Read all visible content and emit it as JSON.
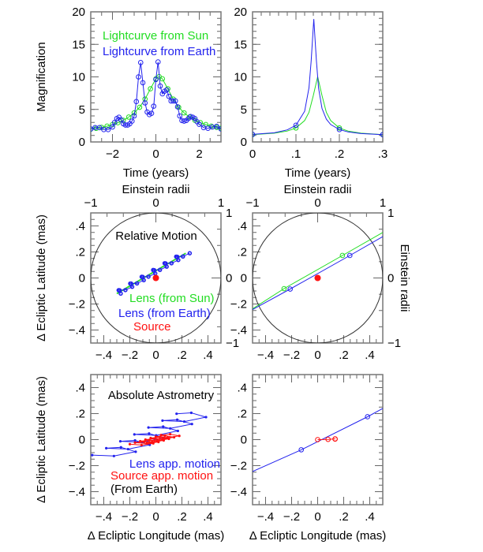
{
  "colors": {
    "sun": "#22dd22",
    "earth": "#2222ee",
    "source": "#ff1111",
    "circle": "#333333"
  },
  "chart_data": [
    {
      "type": "line",
      "xlim": [
        -3,
        3
      ],
      "ylim": [
        0,
        20
      ],
      "xticks": {
        "values": [
          -2,
          0,
          2
        ],
        "labels": [
          "−2",
          "0",
          "2"
        ],
        "minor_step": 0.5
      },
      "yticks": {
        "values": [
          0,
          5,
          10,
          15,
          20
        ],
        "labels": [
          "0",
          "5",
          "10",
          "15",
          "20"
        ],
        "minor_step": 1
      },
      "xlabel": "Time (years)",
      "ylabel": "Magnification",
      "series": [
        {
          "name": "Lightcurve from Sun",
          "color": "#22dd22",
          "marker": "open-circle",
          "x": [
            -3,
            -2.75,
            -2.5,
            -2.25,
            -2,
            -1.75,
            -1.5,
            -1.25,
            -1,
            -0.75,
            -0.5,
            -0.25,
            0,
            0.15,
            0.3,
            0.55,
            0.8,
            1.05,
            1.3,
            1.55,
            1.8,
            2.05,
            2.3,
            2.55,
            2.8,
            3
          ],
          "y": [
            1.96,
            2.09,
            2.24,
            2.43,
            2.67,
            2.96,
            3.33,
            3.82,
            4.47,
            5.33,
            6.59,
            8.17,
            9.7,
            10.04,
            9.7,
            8.17,
            6.59,
            5.33,
            4.47,
            3.82,
            3.33,
            2.96,
            2.67,
            2.43,
            2.24,
            2.12
          ]
        },
        {
          "name": "Lightcurve from Earth",
          "color": "#2222ee",
          "marker": "open-circle",
          "x": [
            -3,
            -2.8,
            -2.6,
            -2.4,
            -2.2,
            -2.0,
            -1.9,
            -1.8,
            -1.7,
            -1.6,
            -1.5,
            -1.4,
            -1.3,
            -1.2,
            -1.1,
            -1.0,
            -0.9,
            -0.8,
            -0.7,
            -0.6,
            -0.5,
            -0.4,
            -0.3,
            -0.2,
            -0.1,
            0.0,
            0.1,
            0.2,
            0.3,
            0.4,
            0.5,
            0.6,
            0.7,
            0.8,
            0.9,
            1.0,
            1.1,
            1.2,
            1.3,
            1.4,
            1.5,
            1.6,
            1.7,
            1.8,
            1.9,
            2.0,
            2.2,
            2.4,
            2.6,
            2.8,
            3.0
          ],
          "y": [
            2.0,
            2.2,
            2.2,
            1.9,
            1.9,
            2.3,
            3.0,
            3.6,
            3.8,
            3.4,
            2.8,
            2.6,
            2.6,
            2.8,
            3.2,
            4.0,
            6.2,
            10.0,
            12.2,
            9.1,
            6.0,
            4.6,
            4.2,
            4.4,
            5.5,
            9.6,
            12.3,
            8.6,
            7.4,
            7.8,
            8.0,
            7.0,
            6.3,
            6.3,
            6.3,
            5.4,
            4.0,
            3.3,
            3.2,
            3.3,
            3.6,
            3.9,
            3.8,
            3.6,
            3.1,
            2.7,
            2.2,
            2.1,
            2.3,
            2.4,
            2.0
          ]
        }
      ],
      "annotations": [
        {
          "text": "Lightcurve from Sun",
          "color": "#22dd22"
        },
        {
          "text": "Lightcurve from Earth",
          "color": "#2222ee"
        }
      ]
    },
    {
      "type": "line",
      "xlim": [
        0,
        0.3
      ],
      "ylim": [
        0,
        20
      ],
      "xticks": {
        "values": [
          0,
          0.1,
          0.2,
          0.3
        ],
        "labels": [
          "0",
          ".1",
          ".2",
          ".3"
        ],
        "minor_step": 0.02
      },
      "yticks": {
        "values": [
          0,
          5,
          10,
          15,
          20
        ],
        "labels": [
          "0",
          "5",
          "10",
          "15",
          "20"
        ],
        "minor_step": 1
      },
      "xlabel": "Time (years)",
      "series": [
        {
          "color": "#22dd22",
          "marker": "open-circle",
          "marker_indices": [
            0,
            3,
            11,
            14
          ],
          "x": [
            0,
            0.05,
            0.08,
            0.1,
            0.12,
            0.13,
            0.14,
            0.15,
            0.16,
            0.17,
            0.18,
            0.2,
            0.22,
            0.25,
            0.3
          ],
          "y": [
            1.13,
            1.34,
            1.67,
            2.15,
            3.28,
            4.55,
            7.14,
            10.04,
            7.14,
            4.55,
            3.28,
            2.15,
            1.67,
            1.34,
            1.13
          ]
        },
        {
          "color": "#2222ee",
          "marker": "open-circle",
          "marker_indices": [
            0,
            3,
            13,
            16
          ],
          "x": [
            0,
            0.05,
            0.08,
            0.1,
            0.12,
            0.13,
            0.135,
            0.141,
            0.147,
            0.152,
            0.16,
            0.17,
            0.18,
            0.2,
            0.22,
            0.25,
            0.3
          ],
          "y": [
            1.16,
            1.41,
            1.86,
            2.57,
            4.71,
            8.31,
            12.5,
            18.9,
            12.5,
            8.31,
            5.15,
            3.5,
            2.68,
            1.9,
            1.54,
            1.28,
            1.11
          ]
        }
      ],
      "annotations": []
    },
    {
      "type": "scatter",
      "xlim": [
        -0.5,
        0.5
      ],
      "ylim": [
        -0.5,
        0.5
      ],
      "xticks": {
        "values": [
          -0.4,
          -0.2,
          0,
          0.2,
          0.4
        ],
        "labels": [
          "−.4",
          "−.2",
          "0",
          ".2",
          ".4"
        ],
        "minor_step": 0.05
      },
      "yticks": {
        "values": [
          -0.4,
          -0.2,
          0,
          0.2,
          0.4
        ],
        "labels": [
          "−.4",
          "−.2",
          "0",
          ".2",
          ".4"
        ],
        "minor_step": 0.05
      },
      "ylabel": "Δ Ecliptic Latitude (mas)",
      "top_axis": {
        "label": "Einstein radii",
        "lim": [
          -1,
          1
        ],
        "values": [
          -1,
          0,
          1
        ],
        "labels": [
          "−1",
          "0",
          "1"
        ],
        "minor_step": 0.25
      },
      "right_axis": {
        "lim": [
          -1,
          1
        ],
        "values": [
          1,
          0,
          -1
        ],
        "labels": [
          "1",
          "0",
          "−1"
        ],
        "minor_step": 0.25
      },
      "circle": {
        "radius": 0.5
      },
      "series": [
        {
          "name": "Lens (from Sun)",
          "color": "#22dd22",
          "marker": "none",
          "x": [
            -0.3,
            0.23
          ],
          "y": [
            -0.12,
            0.19
          ]
        },
        {
          "name": "Lens (from Earth)",
          "color": "#2222ee",
          "marker": "small-open-circle",
          "x": [
            -0.27,
            -0.278,
            -0.286,
            -0.234,
            -0.182,
            -0.19,
            -0.197,
            -0.145,
            -0.093,
            -0.101,
            -0.109,
            -0.057,
            -0.005,
            -0.013,
            -0.021,
            0.031,
            0.083,
            0.075,
            0.067,
            0.12,
            0.172,
            0.164,
            0.156,
            0.208,
            0.26
          ],
          "y": [
            -0.12,
            -0.095,
            -0.094,
            -0.093,
            -0.068,
            -0.043,
            -0.043,
            -0.042,
            -0.017,
            0.008,
            0.009,
            0.01,
            0.035,
            0.06,
            0.061,
            0.062,
            0.087,
            0.112,
            0.113,
            0.113,
            0.138,
            0.163,
            0.164,
            0.165,
            0.19
          ]
        },
        {
          "name": "Source",
          "color": "#ff1111",
          "marker": "filled-circle",
          "x": [
            0
          ],
          "y": [
            0
          ]
        }
      ],
      "annotations": [
        {
          "text": "Relative Motion",
          "color": "#000000"
        },
        {
          "text": "Lens (from Sun)",
          "color": "#22dd22"
        },
        {
          "text": "Lens (from Earth)",
          "color": "#2222ee"
        },
        {
          "text": "Source",
          "color": "#ff1111"
        }
      ]
    },
    {
      "type": "scatter",
      "xlim": [
        -0.5,
        0.5
      ],
      "ylim": [
        -0.5,
        0.5
      ],
      "xticks": {
        "values": [
          -0.4,
          -0.2,
          0,
          0.2,
          0.4
        ],
        "labels": [
          "−.4",
          "−.2",
          "0",
          ".2",
          ".4"
        ],
        "minor_step": 0.05
      },
      "yticks": {
        "values": [
          -0.4,
          -0.2,
          0,
          0.2,
          0.4
        ],
        "labels": [
          "−.4",
          "−.2",
          "0",
          ".2",
          ".4"
        ],
        "minor_step": 0.05
      },
      "top_axis": {
        "label": "Einstein radii",
        "lim": [
          -1,
          1
        ],
        "values": [
          -1,
          0,
          1
        ],
        "labels": [
          "−1",
          "0",
          "1"
        ],
        "minor_step": 0.25
      },
      "right_axis": {
        "label": "Einstein radii",
        "lim": [
          -1,
          1
        ],
        "values": [
          1,
          0,
          -1
        ],
        "labels": [
          "1",
          "0",
          "−1"
        ],
        "minor_step": 0.25
      },
      "circle": {
        "radius": 0.5
      },
      "series": [
        {
          "color": "#22dd22",
          "marker": "open-circle",
          "marker_indices": [
            1,
            2
          ],
          "x": [
            -0.5,
            -0.258,
            0.19,
            0.5
          ],
          "y": [
            -0.237,
            -0.082,
            0.173,
            0.35
          ]
        },
        {
          "color": "#2222ee",
          "marker": "open-circle",
          "marker_indices": [
            1,
            2
          ],
          "x": [
            -0.5,
            -0.211,
            0.247,
            0.5
          ],
          "y": [
            -0.243,
            -0.085,
            0.173,
            0.318
          ]
        },
        {
          "color": "#ff1111",
          "marker": "filled-circle",
          "x": [
            0
          ],
          "y": [
            0
          ]
        }
      ],
      "annotations": []
    },
    {
      "type": "scatter",
      "xlim": [
        -0.5,
        0.5
      ],
      "ylim": [
        -0.5,
        0.5
      ],
      "xticks": {
        "values": [
          -0.4,
          -0.2,
          0,
          0.2,
          0.4
        ],
        "labels": [
          "−.4",
          "−.2",
          "0",
          ".2",
          ".4"
        ],
        "minor_step": 0.05
      },
      "yticks": {
        "values": [
          -0.4,
          -0.2,
          0,
          0.2,
          0.4
        ],
        "labels": [
          "−.4",
          "−.2",
          "0",
          ".2",
          ".4"
        ],
        "minor_step": 0.05
      },
      "xlabel": "Δ Ecliptic Longitude (mas)",
      "ylabel": "Δ Ecliptic Latitude (mas)",
      "series": [
        {
          "name": "Lens app. motion",
          "color": "#2222ee",
          "marker": "dot",
          "x": [
            -0.489,
            -0.322,
            -0.155,
            -0.268,
            -0.381,
            -0.214,
            -0.047,
            -0.16,
            -0.273,
            -0.106,
            0.061,
            -0.052,
            -0.165,
            0.002,
            0.169,
            0.056,
            -0.057,
            0.11,
            0.277,
            0.164,
            0.051,
            0.218,
            0.385,
            0.272,
            0.159
          ],
          "y": [
            -0.119,
            -0.126,
            -0.093,
            -0.059,
            -0.066,
            -0.073,
            -0.04,
            -0.006,
            -0.013,
            -0.02,
            0.013,
            0.047,
            0.04,
            0.033,
            0.067,
            0.1,
            0.093,
            0.086,
            0.12,
            0.153,
            0.146,
            0.139,
            0.173,
            0.206,
            0.199
          ]
        },
        {
          "name": "Source app. motion",
          "color": "#ff1111",
          "marker": "dot",
          "x": [
            -0.2,
            -0.11,
            -0.02,
            -0.09,
            -0.16,
            -0.07,
            0.02,
            -0.05,
            -0.12,
            -0.03,
            0.06,
            -0.01,
            -0.08,
            0.01,
            0.1,
            0.03,
            -0.04,
            0.05,
            0.14,
            0.07,
            0.0,
            0.09,
            0.18,
            0.11,
            0.04
          ],
          "y": [
            -0.035,
            -0.042,
            -0.029,
            -0.016,
            -0.023,
            -0.03,
            -0.018,
            -0.005,
            -0.012,
            -0.019,
            -0.006,
            0.007,
            0.0,
            -0.007,
            0.006,
            0.019,
            0.012,
            0.005,
            0.018,
            0.03,
            0.023,
            0.016,
            0.029,
            0.042,
            0.035
          ]
        }
      ],
      "annotations": [
        {
          "text": "Absolute Astrometry",
          "color": "#000000"
        },
        {
          "text": "Lens app. motion",
          "color": "#2222ee"
        },
        {
          "text": "Source app. motion",
          "color": "#ff1111"
        },
        {
          "text": "(From Earth)",
          "color": "#000000"
        }
      ]
    },
    {
      "type": "scatter",
      "xlim": [
        -0.5,
        0.5
      ],
      "ylim": [
        -0.5,
        0.5
      ],
      "xticks": {
        "values": [
          -0.4,
          -0.2,
          0,
          0.2,
          0.4
        ],
        "labels": [
          "−.4",
          "−.2",
          "0",
          ".2",
          ".4"
        ],
        "minor_step": 0.05
      },
      "yticks": {
        "values": [
          -0.4,
          -0.2,
          0,
          0.2,
          0.4
        ],
        "labels": [
          "−.4",
          "−.2",
          "0",
          ".2",
          ".4"
        ],
        "minor_step": 0.05
      },
      "xlabel": "Δ Ecliptic Longitude (mas)",
      "series": [
        {
          "color": "#2222ee",
          "marker": "open-circle",
          "marker_indices": [
            1,
            2
          ],
          "x": [
            -0.5,
            -0.126,
            0.383,
            0.5
          ],
          "y": [
            -0.245,
            -0.078,
            0.176,
            0.24
          ]
        },
        {
          "color": "#ff1111",
          "marker": "open-circle",
          "x": [
            0,
            0.08,
            0.134,
            0.134
          ],
          "y": [
            0,
            0.002,
            0.006,
            0.004
          ]
        }
      ],
      "annotations": []
    }
  ]
}
